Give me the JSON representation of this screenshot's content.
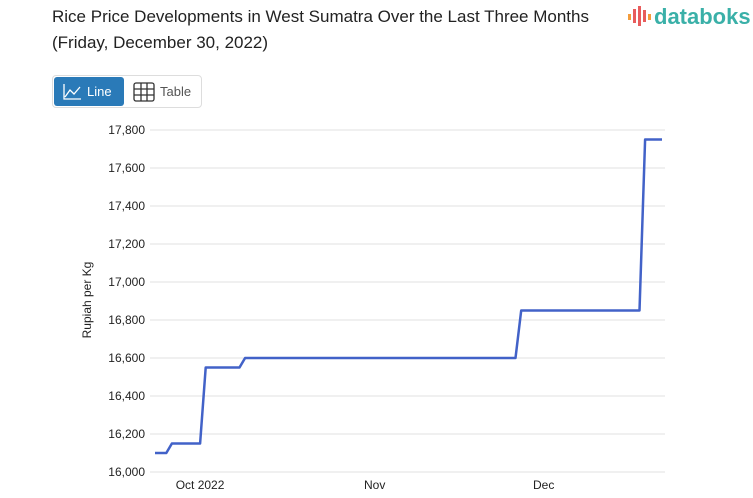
{
  "title": "Rice Price Developments in West Sumatra Over the Last Three Months (Friday, December 30, 2022)",
  "logo": {
    "text": "databoks",
    "colors": [
      "#f39c3c",
      "#e85c5c",
      "#3ab0a8"
    ]
  },
  "toggle": {
    "line_label": "Line",
    "table_label": "Table",
    "active": "Line",
    "active_color": "#2a7ab8"
  },
  "chart_data": {
    "type": "line",
    "title": "Rice Price Developments in West Sumatra Over the Last Three Months (Friday, December 30, 2022)",
    "ylabel": "Rupiah per Kg",
    "xlabel": "",
    "ylim": [
      16000,
      17800
    ],
    "yticks": [
      16000,
      16200,
      16400,
      16600,
      16800,
      17000,
      17200,
      17400,
      17600,
      17800
    ],
    "ytick_labels": [
      "16,000",
      "16,200",
      "16,400",
      "16,600",
      "16,800",
      "17,000",
      "17,200",
      "17,400",
      "17,600",
      "17,800"
    ],
    "xlim": [
      "2022-09-23",
      "2022-12-22"
    ],
    "xticks": [
      {
        "date": "2022-10-01",
        "label": "Oct 2022"
      },
      {
        "date": "2022-11-01",
        "label": "Nov"
      },
      {
        "date": "2022-12-01",
        "label": "Dec"
      }
    ],
    "grid": true,
    "line_color": "#4262c8",
    "series": [
      {
        "points": [
          [
            "2022-09-23",
            16100
          ],
          [
            "2022-09-25",
            16100
          ],
          [
            "2022-09-26",
            16150
          ],
          [
            "2022-10-01",
            16150
          ],
          [
            "2022-10-02",
            16550
          ],
          [
            "2022-10-08",
            16550
          ],
          [
            "2022-10-09",
            16600
          ],
          [
            "2022-11-26",
            16600
          ],
          [
            "2022-11-27",
            16850
          ],
          [
            "2022-12-18",
            16850
          ],
          [
            "2022-12-19",
            17750
          ],
          [
            "2022-12-22",
            17750
          ]
        ]
      }
    ]
  }
}
